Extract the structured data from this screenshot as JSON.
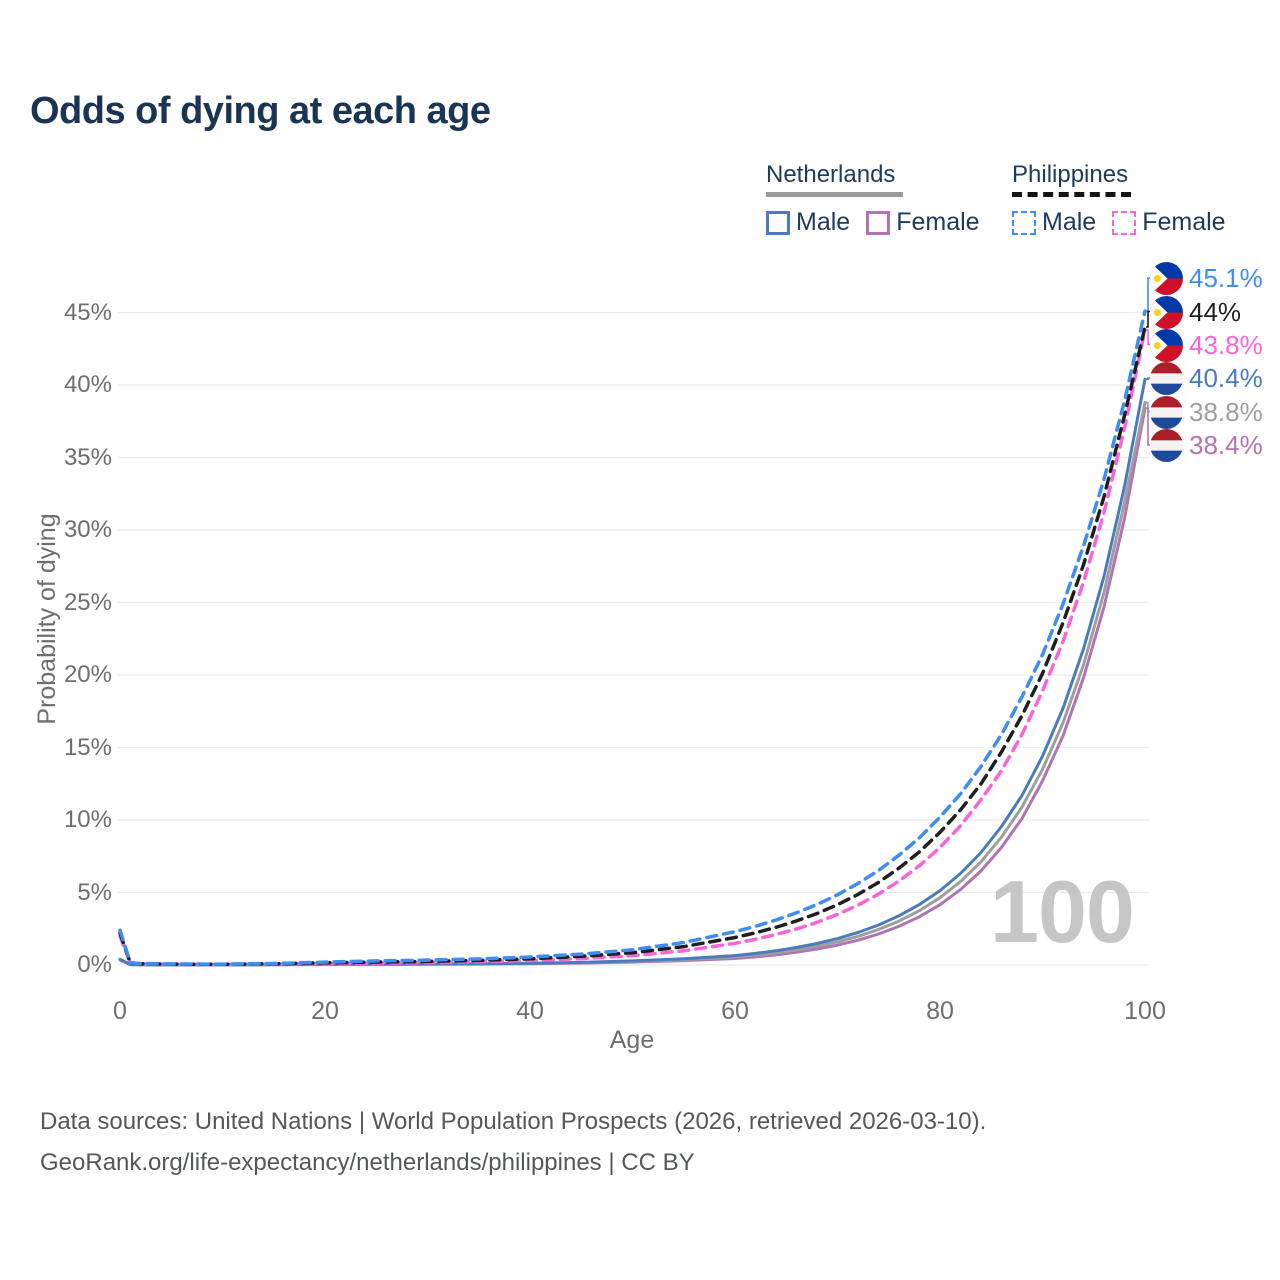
{
  "header": {
    "title": "Odds of dying at each age"
  },
  "legend": {
    "groups": [
      {
        "country": "Netherlands",
        "line_style": "solid",
        "items": [
          {
            "label": "Male"
          },
          {
            "label": "Female"
          }
        ]
      },
      {
        "country": "Philippines",
        "line_style": "dashed",
        "items": [
          {
            "label": "Male"
          },
          {
            "label": "Female"
          }
        ]
      }
    ]
  },
  "axes": {
    "y_title": "Probability of dying",
    "x_title": "Age",
    "y_ticks": [
      "0%",
      "5%",
      "10%",
      "15%",
      "20%",
      "25%",
      "30%",
      "35%",
      "40%",
      "45%"
    ],
    "x_ticks": [
      "0",
      "20",
      "40",
      "60",
      "80",
      "100"
    ]
  },
  "age_counter": "100",
  "footer": {
    "line1": "Data sources: United Nations | World Population Prospects (2026, retrieved 2026-03-10).",
    "line2": "GeoRank.org/life-expectancy/netherlands/philippines | CC BY"
  },
  "colors": {
    "title": "#1a3553",
    "legend_text": "#1d3b5a",
    "legend_nl_line": "#9a9a9a",
    "legend_ph_line": "#141414",
    "axis_text": "#6e6e6e",
    "grid": "#ebebeb",
    "watermark": "#c6c6c6",
    "footer": "#54585c",
    "ph_male": "#3e8df5",
    "ph_total": "#1f1f1f",
    "ph_female": "#f964d9",
    "nl_male": "#4a7cbd",
    "nl_total": "#9e9e9e",
    "nl_female": "#b173b1"
  },
  "chart_data": {
    "type": "line",
    "title": "Odds of dying at each age",
    "xlabel": "Age",
    "ylabel": "Probability of dying",
    "x_range": [
      0,
      100
    ],
    "y_range_percent": [
      0,
      47
    ],
    "grid": "horizontal",
    "units": "percent probability of dying at each age",
    "x": [
      0,
      1,
      2,
      5,
      10,
      15,
      20,
      25,
      30,
      35,
      40,
      45,
      50,
      55,
      60,
      62,
      64,
      66,
      68,
      70,
      72,
      74,
      76,
      78,
      80,
      82,
      84,
      86,
      88,
      90,
      92,
      94,
      96,
      98,
      100
    ],
    "series": [
      {
        "name": "Philippines Male",
        "country": "Philippines",
        "style": "dashed",
        "color": "#3e8df5",
        "end_label": "45.1%",
        "values": [
          2.4,
          0.16,
          0.1,
          0.07,
          0.06,
          0.1,
          0.2,
          0.28,
          0.34,
          0.42,
          0.55,
          0.75,
          1.05,
          1.55,
          2.3,
          2.67,
          3.1,
          3.6,
          4.17,
          4.84,
          5.62,
          6.52,
          7.57,
          8.78,
          10.2,
          11.8,
          13.7,
          15.9,
          18.5,
          21.4,
          24.9,
          28.9,
          33.5,
          38.9,
          45.1
        ]
      },
      {
        "name": "Philippines Total",
        "country": "Philippines",
        "style": "dashed",
        "color": "#1f1f1f",
        "end_label": "44%",
        "values": [
          2.2,
          0.15,
          0.09,
          0.06,
          0.05,
          0.08,
          0.15,
          0.2,
          0.25,
          0.32,
          0.43,
          0.6,
          0.85,
          1.27,
          1.9,
          2.22,
          2.6,
          3.04,
          3.55,
          4.16,
          4.87,
          5.7,
          6.68,
          7.81,
          9.15,
          10.7,
          12.5,
          14.7,
          17.2,
          20.1,
          23.6,
          27.6,
          32.3,
          37.9,
          44.0
        ]
      },
      {
        "name": "Philippines Female",
        "country": "Philippines",
        "style": "dashed",
        "color": "#f964d9",
        "end_label": "43.8%",
        "values": [
          2.0,
          0.13,
          0.08,
          0.05,
          0.04,
          0.06,
          0.09,
          0.12,
          0.16,
          0.22,
          0.31,
          0.44,
          0.65,
          0.98,
          1.5,
          1.77,
          2.1,
          2.48,
          2.94,
          3.49,
          4.13,
          4.89,
          5.79,
          6.85,
          8.11,
          9.6,
          11.4,
          13.4,
          15.9,
          18.9,
          22.3,
          26.4,
          31.2,
          37.0,
          43.8
        ]
      },
      {
        "name": "Netherlands Male",
        "country": "Netherlands",
        "style": "solid",
        "color": "#4a7cbd",
        "end_label": "40.4%",
        "values": [
          0.4,
          0.03,
          0.02,
          0.01,
          0.01,
          0.03,
          0.05,
          0.06,
          0.07,
          0.09,
          0.12,
          0.18,
          0.28,
          0.43,
          0.65,
          0.8,
          0.98,
          1.21,
          1.48,
          1.82,
          2.24,
          2.76,
          3.39,
          4.17,
          5.13,
          6.31,
          7.76,
          9.55,
          11.7,
          14.4,
          17.7,
          21.8,
          26.8,
          33.0,
          40.4
        ]
      },
      {
        "name": "Netherlands Total",
        "country": "Netherlands",
        "style": "solid",
        "color": "#9e9e9e",
        "end_label": "38.8%",
        "values": [
          0.38,
          0.03,
          0.02,
          0.01,
          0.01,
          0.025,
          0.04,
          0.05,
          0.06,
          0.08,
          0.1,
          0.15,
          0.24,
          0.36,
          0.55,
          0.68,
          0.84,
          1.04,
          1.29,
          1.6,
          1.97,
          2.45,
          3.03,
          3.75,
          4.64,
          5.75,
          7.12,
          8.82,
          10.9,
          13.5,
          16.7,
          20.7,
          25.7,
          31.9,
          38.8
        ]
      },
      {
        "name": "Netherlands Female",
        "country": "Netherlands",
        "style": "solid",
        "color": "#b173b1",
        "end_label": "38.4%",
        "values": [
          0.35,
          0.03,
          0.02,
          0.01,
          0.01,
          0.02,
          0.03,
          0.04,
          0.05,
          0.06,
          0.09,
          0.13,
          0.2,
          0.3,
          0.45,
          0.56,
          0.7,
          0.88,
          1.1,
          1.37,
          1.71,
          2.14,
          2.67,
          3.33,
          4.16,
          5.2,
          6.49,
          8.11,
          10.1,
          12.7,
          15.8,
          19.8,
          24.7,
          30.8,
          38.4
        ]
      }
    ]
  }
}
